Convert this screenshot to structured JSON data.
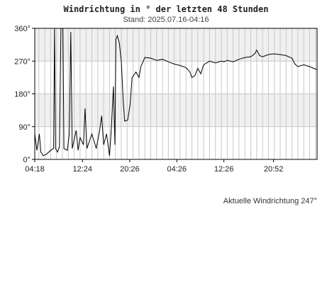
{
  "chart_data": {
    "type": "line",
    "title": "Windrichtung in ° der letzten 48 Stunden",
    "subtitle": "Stand: 2025.07.16-04:16",
    "y_unit": "°",
    "ylim": [
      0,
      360
    ],
    "y_ticks": [
      {
        "value": 0,
        "label": "0°"
      },
      {
        "value": 90,
        "label": "90°"
      },
      {
        "value": 180,
        "label": "180°"
      },
      {
        "value": 270,
        "label": "270°"
      },
      {
        "value": 360,
        "label": "360°"
      }
    ],
    "xlim": [
      "2025.07.14-04:18",
      "2025.07.16-04:16"
    ],
    "x_ticks": [
      {
        "value": "2025.07.14-04:18",
        "label": "04:18"
      },
      {
        "value": "2025.07.14-12:24",
        "label": "12:24"
      },
      {
        "value": "2025.07.14-20:26",
        "label": "20:26"
      },
      {
        "value": "2025.07.15-04:26",
        "label": "04:26"
      },
      {
        "value": "2025.07.15-12:26",
        "label": "12:26"
      },
      {
        "value": "2025.07.15-20:52",
        "label": "20:52"
      }
    ],
    "grid": true,
    "alternating_bands": true,
    "series": [
      {
        "color": "#000000",
        "points": [
          [
            "2025.07.14-04:18",
            70
          ],
          [
            "2025.07.14-04:40",
            25
          ],
          [
            "2025.07.14-05:05",
            70
          ],
          [
            "2025.07.14-05:20",
            20
          ],
          [
            "2025.07.14-05:45",
            10
          ],
          [
            "2025.07.14-06:20",
            15
          ],
          [
            "2025.07.14-07:00",
            25
          ],
          [
            "2025.07.14-07:30",
            30
          ],
          [
            "2025.07.14-07:40",
            360
          ],
          [
            "2025.07.14-07:50",
            30
          ],
          [
            "2025.07.14-08:10",
            20
          ],
          [
            "2025.07.14-08:30",
            35
          ],
          [
            "2025.07.14-08:45",
            360
          ],
          [
            "2025.07.14-09:05",
            360
          ],
          [
            "2025.07.14-09:15",
            30
          ],
          [
            "2025.07.14-09:50",
            25
          ],
          [
            "2025.07.14-10:10",
            70
          ],
          [
            "2025.07.14-10:25",
            350
          ],
          [
            "2025.07.14-10:40",
            30
          ],
          [
            "2025.07.14-11:20",
            80
          ],
          [
            "2025.07.14-11:40",
            25
          ],
          [
            "2025.07.14-12:00",
            60
          ],
          [
            "2025.07.14-12:35",
            40
          ],
          [
            "2025.07.14-12:50",
            140
          ],
          [
            "2025.07.14-13:10",
            30
          ],
          [
            "2025.07.14-14:00",
            70
          ],
          [
            "2025.07.14-14:45",
            30
          ],
          [
            "2025.07.14-15:20",
            80
          ],
          [
            "2025.07.14-15:40",
            120
          ],
          [
            "2025.07.14-16:00",
            40
          ],
          [
            "2025.07.14-16:30",
            70
          ],
          [
            "2025.07.14-17:00",
            10
          ],
          [
            "2025.07.14-17:20",
            90
          ],
          [
            "2025.07.14-17:40",
            200
          ],
          [
            "2025.07.14-17:55",
            40
          ],
          [
            "2025.07.14-18:05",
            330
          ],
          [
            "2025.07.14-18:20",
            340
          ],
          [
            "2025.07.14-18:40",
            320
          ],
          [
            "2025.07.14-19:00",
            270
          ],
          [
            "2025.07.14-19:20",
            160
          ],
          [
            "2025.07.14-19:35",
            105
          ],
          [
            "2025.07.14-20:05",
            108
          ],
          [
            "2025.07.14-20:30",
            150
          ],
          [
            "2025.07.14-20:50",
            225
          ],
          [
            "2025.07.14-21:30",
            240
          ],
          [
            "2025.07.14-22:00",
            225
          ],
          [
            "2025.07.14-22:20",
            255
          ],
          [
            "2025.07.14-23:00",
            280
          ],
          [
            "2025.07.15-00:00",
            278
          ],
          [
            "2025.07.15-01:00",
            272
          ],
          [
            "2025.07.15-02:00",
            275
          ],
          [
            "2025.07.15-03:00",
            268
          ],
          [
            "2025.07.15-04:00",
            262
          ],
          [
            "2025.07.15-04:26",
            260
          ],
          [
            "2025.07.15-05:00",
            258
          ],
          [
            "2025.07.15-06:00",
            252
          ],
          [
            "2025.07.15-06:40",
            240
          ],
          [
            "2025.07.15-07:00",
            225
          ],
          [
            "2025.07.15-07:30",
            230
          ],
          [
            "2025.07.15-08:00",
            250
          ],
          [
            "2025.07.15-08:30",
            235
          ],
          [
            "2025.07.15-09:00",
            260
          ],
          [
            "2025.07.15-10:00",
            270
          ],
          [
            "2025.07.15-11:00",
            265
          ],
          [
            "2025.07.15-12:00",
            270
          ],
          [
            "2025.07.15-12:26",
            268
          ],
          [
            "2025.07.15-13:00",
            272
          ],
          [
            "2025.07.15-14:00",
            268
          ],
          [
            "2025.07.15-15:00",
            275
          ],
          [
            "2025.07.15-16:00",
            280
          ],
          [
            "2025.07.15-17:00",
            282
          ],
          [
            "2025.07.15-17:40",
            290
          ],
          [
            "2025.07.15-18:00",
            300
          ],
          [
            "2025.07.15-18:30",
            285
          ],
          [
            "2025.07.15-19:00",
            282
          ],
          [
            "2025.07.15-20:00",
            288
          ],
          [
            "2025.07.15-20:52",
            290
          ],
          [
            "2025.07.15-22:00",
            288
          ],
          [
            "2025.07.15-23:00",
            285
          ],
          [
            "2025.07.16-00:00",
            278
          ],
          [
            "2025.07.16-00:30",
            262
          ],
          [
            "2025.07.16-01:00",
            255
          ],
          [
            "2025.07.16-02:00",
            260
          ],
          [
            "2025.07.16-03:00",
            255
          ],
          [
            "2025.07.16-03:40",
            250
          ],
          [
            "2025.07.16-04:16",
            247
          ]
        ]
      }
    ]
  },
  "footer": {
    "current_label": "Aktuelle Windrichtung 247°"
  }
}
